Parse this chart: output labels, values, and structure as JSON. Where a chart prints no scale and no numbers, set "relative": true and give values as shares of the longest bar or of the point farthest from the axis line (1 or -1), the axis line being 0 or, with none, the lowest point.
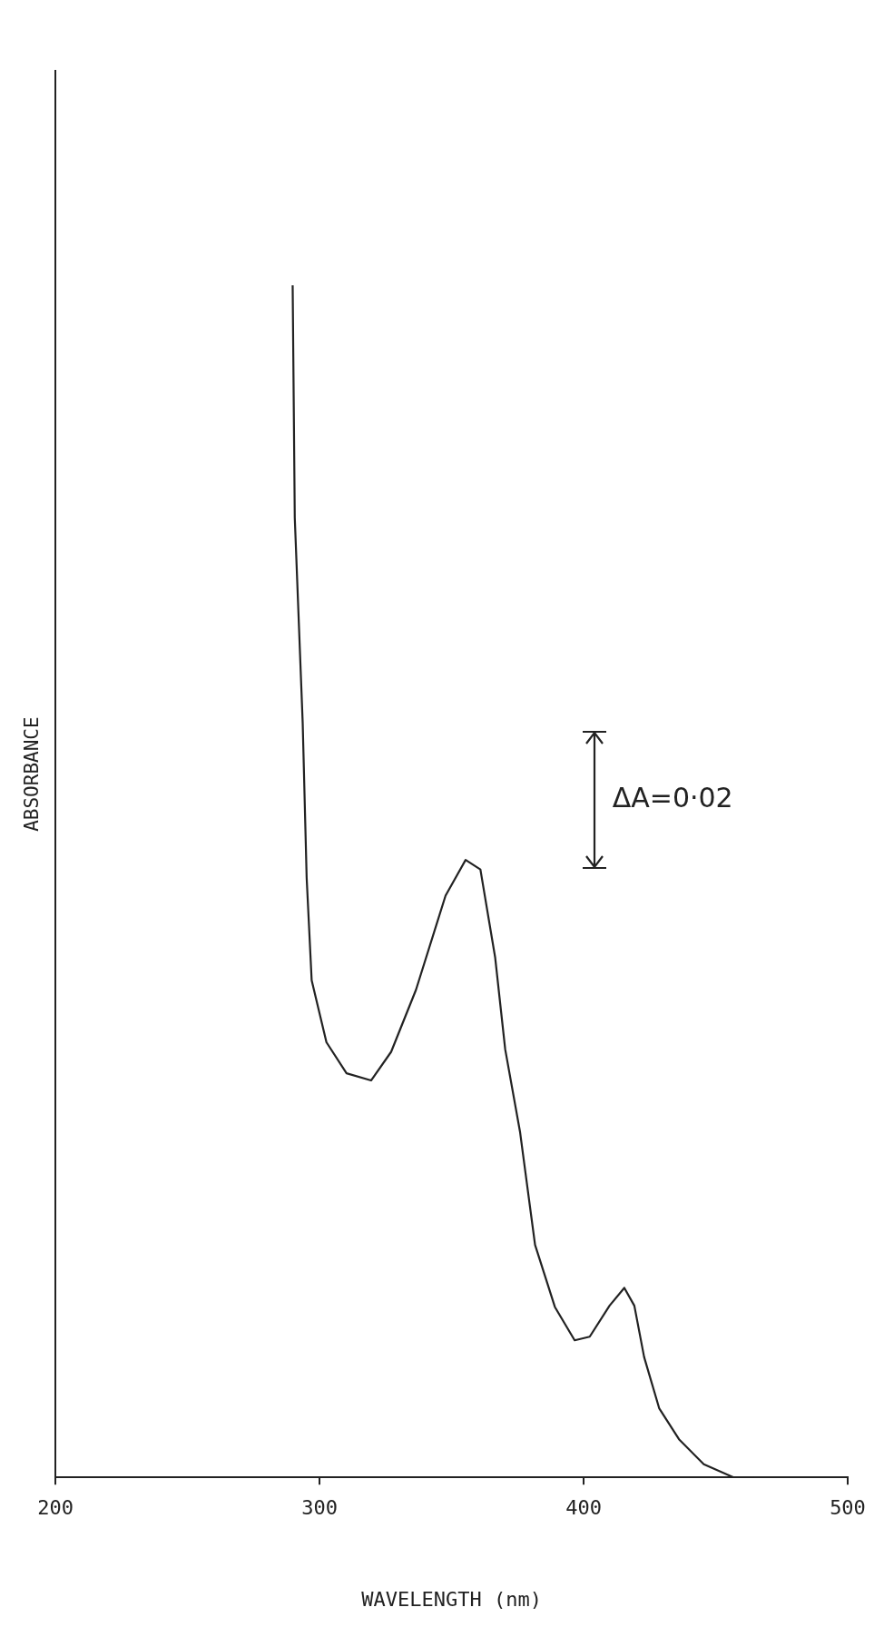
{
  "chart_data": {
    "type": "line",
    "relative": true,
    "xlabel": "WAVELENGTH (nm)",
    "ylabel": "ABSORBANCE",
    "annotations": [
      "ΔA=0·02"
    ],
    "xlim": [
      200,
      500
    ],
    "xticks": [
      200,
      300,
      400,
      500
    ],
    "grid": false,
    "legend": false,
    "marker": "none",
    "line_style": "solid",
    "series": [
      {
        "color": "#222222",
        "x": [
          289.8,
          290.6,
          293.6,
          295.1,
          297,
          302.6,
          310.2,
          319.5,
          327.1,
          336.5,
          347.7,
          355.3,
          360.9,
          366.5,
          370.3,
          375.9,
          381.6,
          389.1,
          396.6,
          402.3,
          409.8,
          415.4,
          419.2,
          422.9,
          428.6,
          436.1,
          445.5,
          456.8,
          464.3
        ],
        "values": [
          1,
          0.805,
          0.633,
          0.503,
          0.417,
          0.365,
          0.339,
          0.333,
          0.357,
          0.409,
          0.488,
          0.518,
          0.51,
          0.436,
          0.359,
          0.29,
          0.195,
          0.143,
          0.115,
          0.118,
          0.144,
          0.159,
          0.144,
          0.101,
          0.058,
          0.032,
          0.011,
          0,
          0
        ]
      }
    ]
  }
}
